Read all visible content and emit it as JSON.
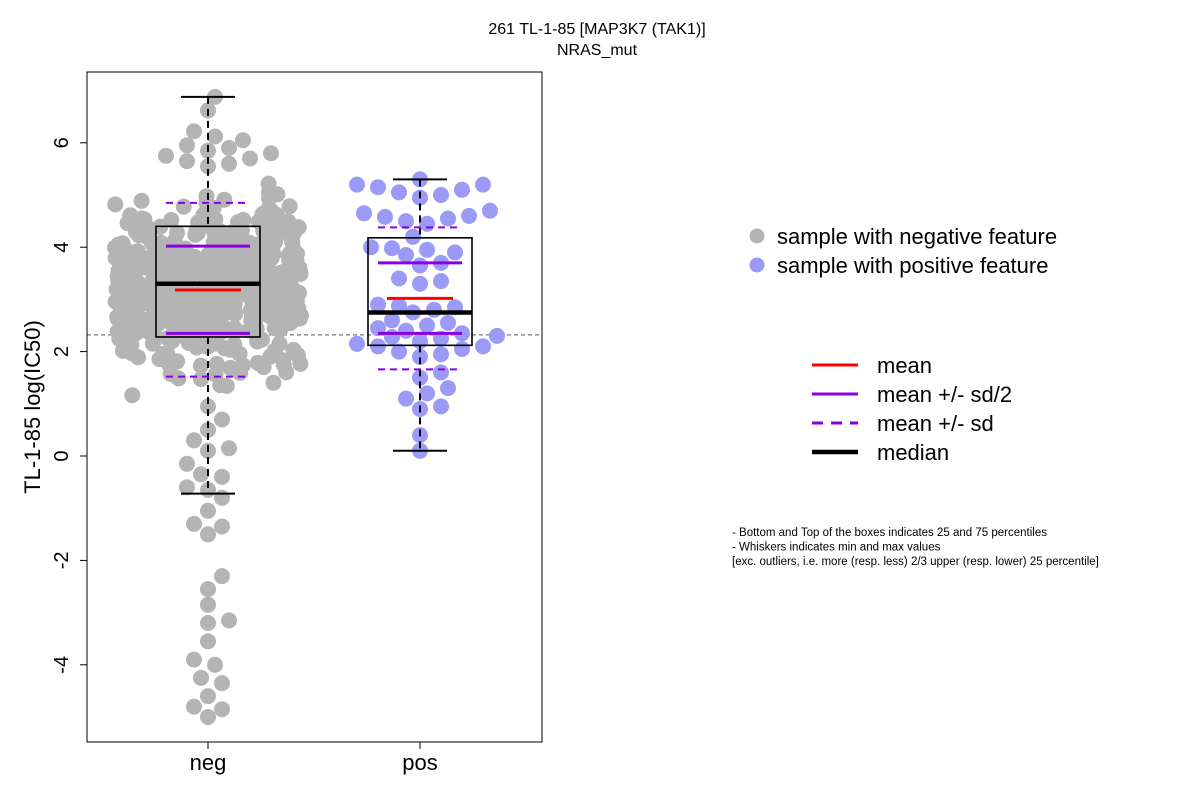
{
  "chart_data": {
    "type": "box",
    "title": "261 TL-1-85 [MAP3K7 (TAK1)]",
    "subtitle": "NRAS_mut",
    "xlabel": "",
    "ylabel": "TL-1-85 log(IC50)",
    "ylim": [
      -5.5,
      7.5
    ],
    "yticks": [
      -4,
      -2,
      0,
      2,
      4,
      6
    ],
    "reference_line_y": 2.32,
    "categories": [
      "neg",
      "pos"
    ],
    "groups": [
      {
        "category": "neg",
        "color": "#b4b4b4",
        "whisker_min": -0.72,
        "q1": 2.28,
        "median": 3.3,
        "q3": 4.4,
        "whisker_max": 6.88,
        "mean": 3.18,
        "mean_minus_half_sd": 2.35,
        "mean_plus_half_sd": 4.02,
        "mean_minus_sd": 1.52,
        "mean_plus_sd": 4.85,
        "points_summary": "dense cloud between about 1 and 6, spread roughly -1 to 7",
        "low_points": [
          0.95,
          0.7,
          0.5,
          0.3,
          0.15,
          0.1,
          -0.15,
          -0.35,
          -0.4,
          -0.6,
          -0.65,
          -0.8,
          -1.05,
          -1.3,
          -1.35,
          -1.5,
          -2.3,
          -2.55,
          -2.85,
          -3.15,
          -3.2,
          -3.55,
          -3.9,
          -4.0,
          -4.25,
          -4.35,
          -4.6,
          -4.8,
          -4.85,
          -5.0
        ],
        "high_points": [
          6.88,
          6.62,
          6.22,
          6.12,
          6.05,
          5.95,
          5.9,
          5.85,
          5.8,
          5.75,
          5.7,
          5.65,
          5.6,
          5.55
        ]
      },
      {
        "category": "pos",
        "color": "#9b9bf7",
        "whisker_min": 0.1,
        "q1": 2.12,
        "median": 2.75,
        "q3": 4.18,
        "whisker_max": 5.3,
        "mean": 3.02,
        "mean_minus_half_sd": 2.35,
        "mean_plus_half_sd": 3.7,
        "mean_minus_sd": 1.66,
        "mean_plus_sd": 4.38,
        "values": [
          5.3,
          5.2,
          5.2,
          5.15,
          5.1,
          5.05,
          5.0,
          4.95,
          4.7,
          4.65,
          4.6,
          4.58,
          4.55,
          4.5,
          4.45,
          4.2,
          4.0,
          3.98,
          3.95,
          3.9,
          3.85,
          3.7,
          3.65,
          3.4,
          3.35,
          3.3,
          2.9,
          2.88,
          2.85,
          2.8,
          2.75,
          2.6,
          2.55,
          2.5,
          2.45,
          2.4,
          2.35,
          2.3,
          2.28,
          2.25,
          2.2,
          2.15,
          2.1,
          2.1,
          2.05,
          2.0,
          1.95,
          1.9,
          1.6,
          1.5,
          1.3,
          1.2,
          1.1,
          0.95,
          0.9,
          0.4,
          0.1
        ]
      }
    ],
    "legend": {
      "position": "right",
      "points": [
        {
          "label": "sample with negative feature",
          "color": "#b4b4b4"
        },
        {
          "label": "sample with positive feature",
          "color": "#9b9bf7"
        }
      ],
      "lines": [
        {
          "label": "mean",
          "color": "#ff0000",
          "style": "solid"
        },
        {
          "label": "mean +/- sd/2",
          "color": "#8a00e6",
          "style": "solid"
        },
        {
          "label": "mean +/- sd",
          "color": "#8a00e6",
          "style": "dashed"
        },
        {
          "label": "median",
          "color": "#000000",
          "style": "solid-thick"
        }
      ]
    },
    "notes": [
      "- Bottom and Top of the boxes indicates 25 and 75 percentiles",
      "- Whiskers indicates min and max values",
      "[exc. outliers, i.e. more (resp. less) 2/3 upper (resp. lower) 25 percentile]"
    ],
    "colors": {
      "mean": "#ff0000",
      "sd": "#8a00e6",
      "median": "#000000",
      "neg_points": "#b4b4b4",
      "pos_points": "#9b9bf7"
    }
  }
}
